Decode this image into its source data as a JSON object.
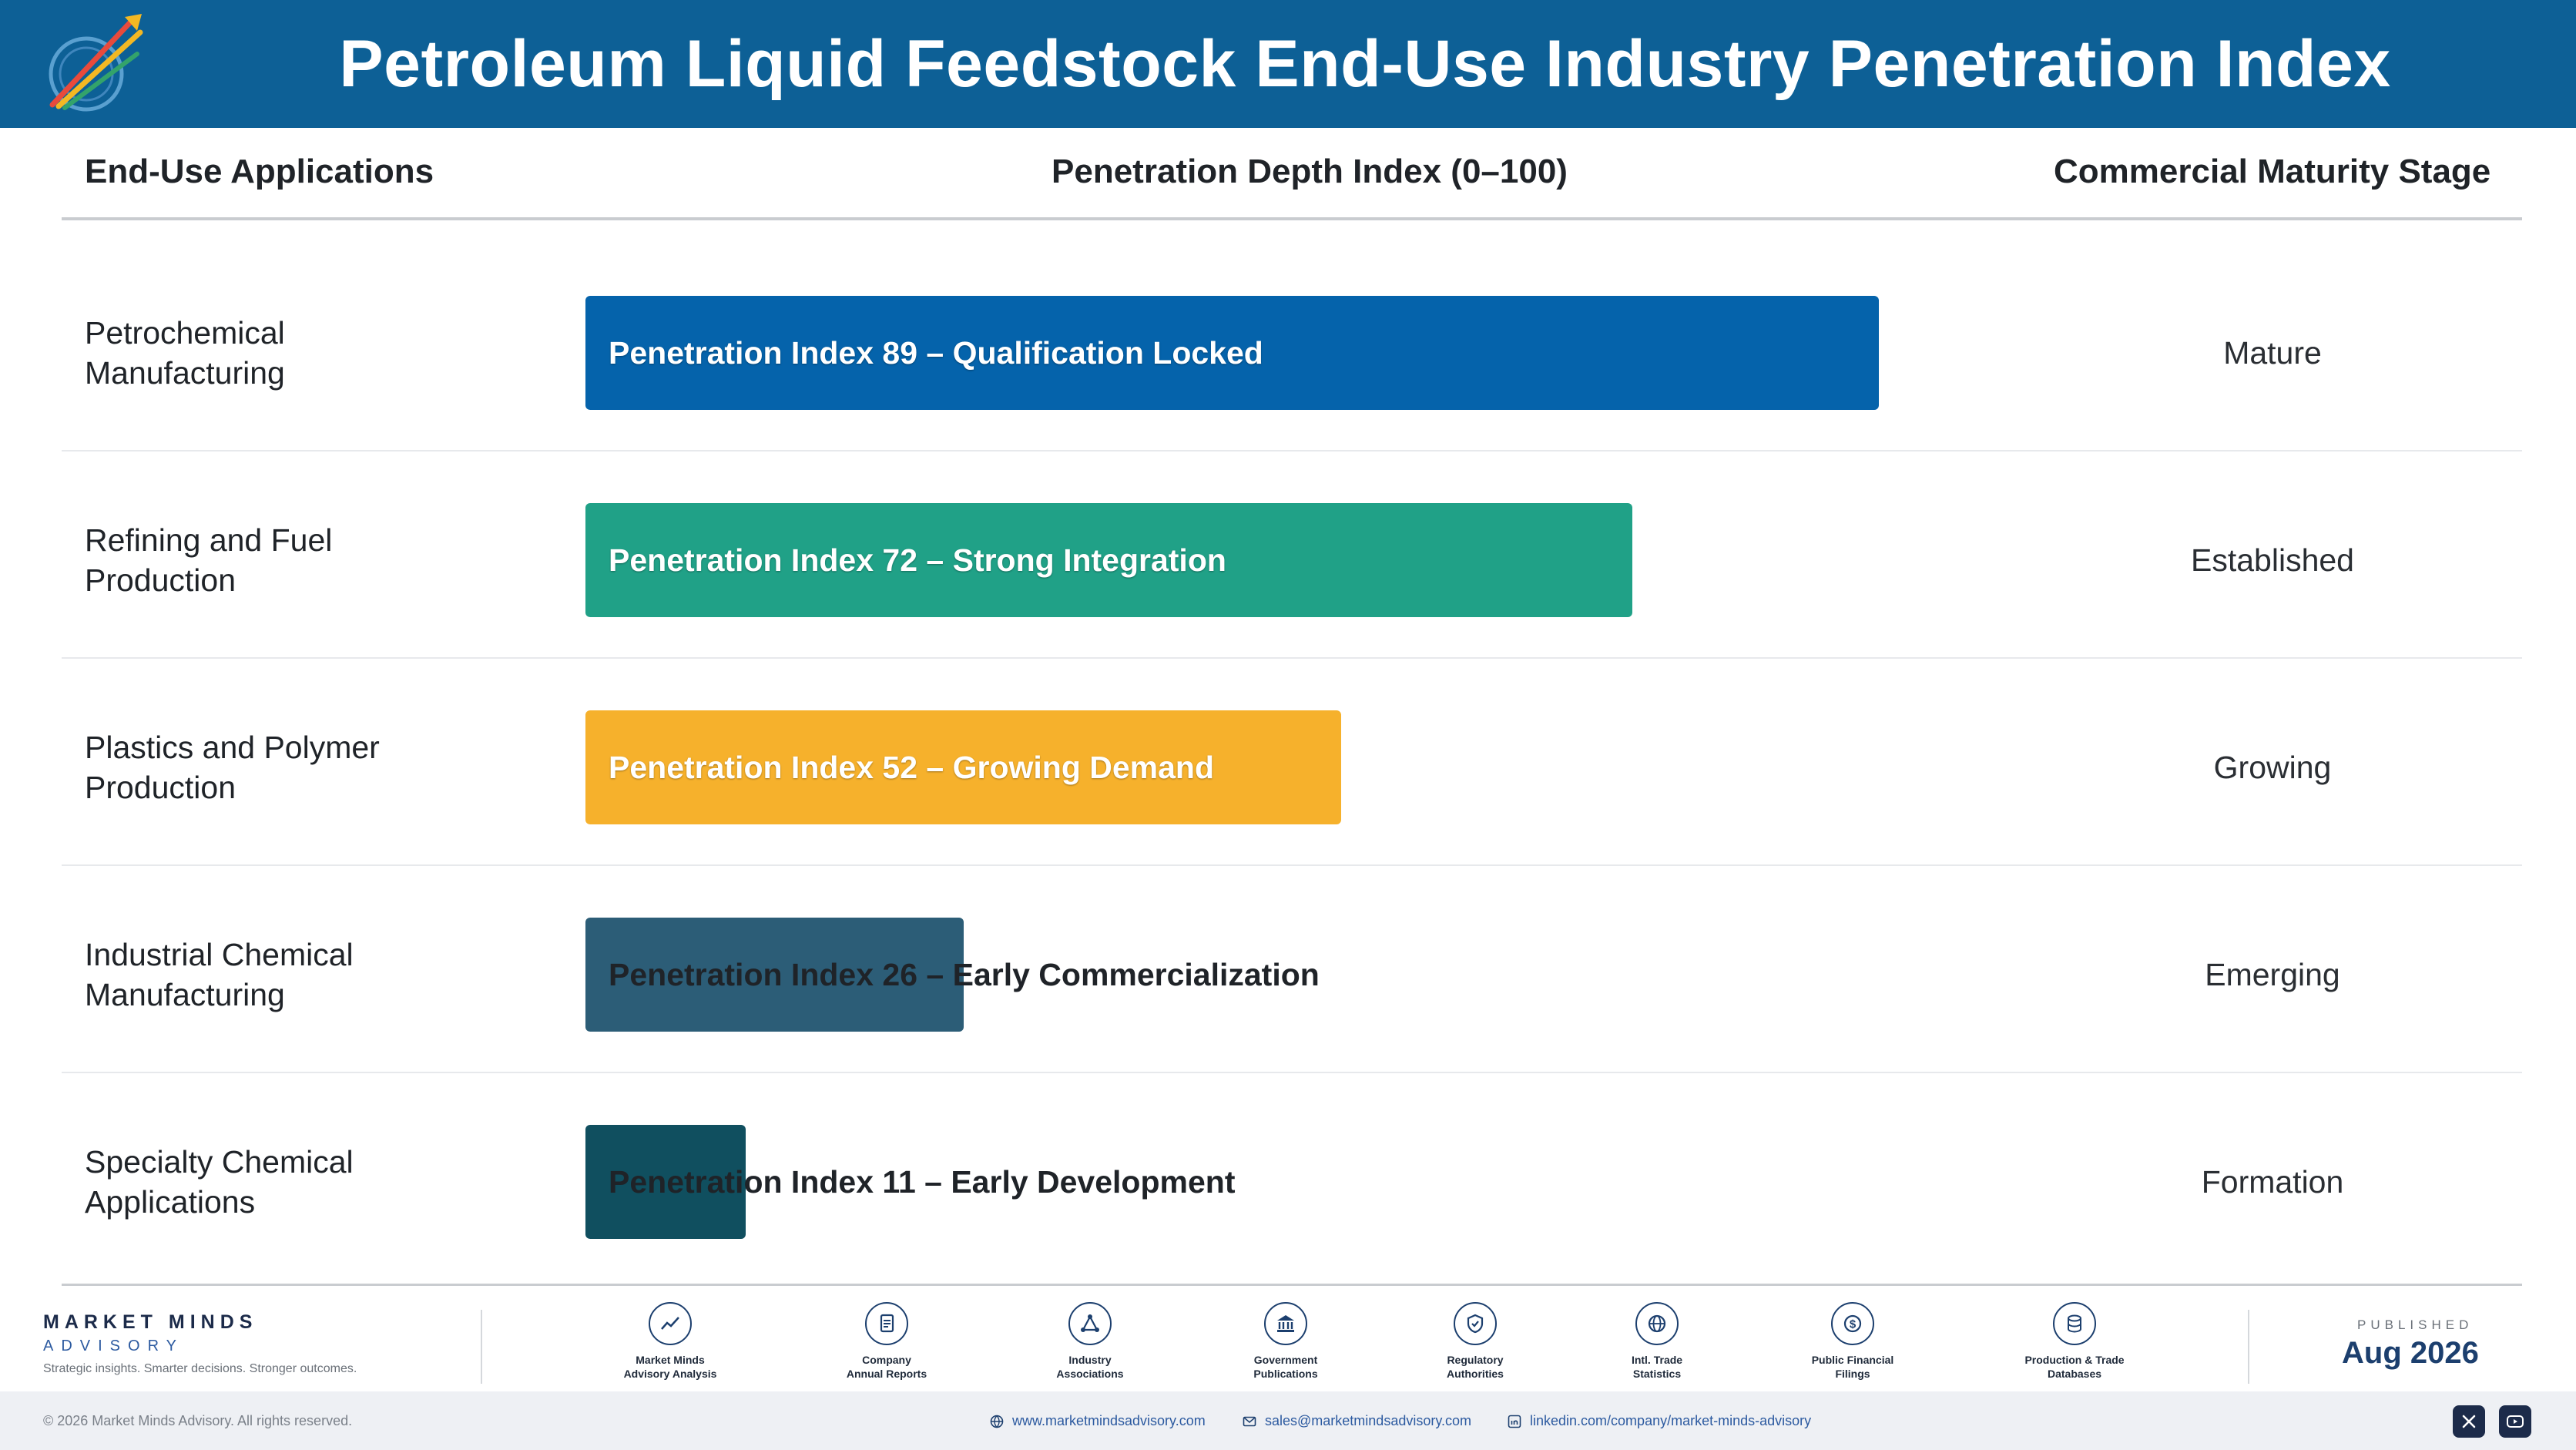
{
  "header": {
    "title": "Petroleum Liquid Feedstock End-Use Industry Penetration Index",
    "logo_icon": "market-minds-logo"
  },
  "columns": {
    "applications": "End-Use Applications",
    "index": "Penetration Depth Index (0–100)",
    "stage": "Commercial Maturity Stage"
  },
  "chart_data": {
    "type": "bar",
    "orientation": "horizontal",
    "xlim": [
      0,
      100
    ],
    "categories": [
      "Petrochemical Manufacturing",
      "Refining and Fuel Production",
      "Plastics and Polymer Production",
      "Industrial Chemical Manufacturing",
      "Specialty Chemical Applications"
    ],
    "values": [
      89,
      72,
      52,
      26,
      11
    ],
    "bar_labels": [
      "Penetration Index 89 – Qualification Locked",
      "Penetration Index 72 – Strong Integration",
      "Penetration Index 52 – Growing Demand",
      "Penetration Index 26 – Early Commercialization",
      "Penetration Index 11 – Early Development"
    ],
    "stages": [
      "Mature",
      "Established",
      "Growing",
      "Emerging",
      "Formation"
    ],
    "colors": [
      "#0563ab",
      "#20a187",
      "#f6b12c",
      "#2c5d77",
      "#104f5f"
    ]
  },
  "rows": [
    {
      "label_line1": "Petrochemical",
      "label_line2": "Manufacturing"
    },
    {
      "label_line1": "Refining and Fuel",
      "label_line2": "Production"
    },
    {
      "label_line1": "Plastics and Polymer",
      "label_line2": "Production"
    },
    {
      "label_line1": "Industrial Chemical",
      "label_line2": "Manufacturing"
    },
    {
      "label_line1": "Specialty Chemical",
      "label_line2": "Applications"
    }
  ],
  "footer": {
    "brand_name": "MARKET MINDS",
    "brand_sub": "ADVISORY",
    "brand_tagline": "Strategic insights. Smarter decisions. Stronger outcomes.",
    "sources": [
      {
        "line1": "Market Minds",
        "line2": "Advisory Analysis",
        "icon": "trend-chart-icon"
      },
      {
        "line1": "Company",
        "line2": "Annual Reports",
        "icon": "document-icon"
      },
      {
        "line1": "Industry",
        "line2": "Associations",
        "icon": "network-icon"
      },
      {
        "line1": "Government",
        "line2": "Publications",
        "icon": "government-building-icon"
      },
      {
        "line1": "Regulatory",
        "line2": "Authorities",
        "icon": "shield-check-icon"
      },
      {
        "line1": "Intl. Trade",
        "line2": "Statistics",
        "icon": "globe-icon"
      },
      {
        "line1": "Public Financial",
        "line2": "Filings",
        "icon": "dollar-coin-icon"
      },
      {
        "line1": "Production & Trade",
        "line2": "Databases",
        "icon": "database-icon"
      }
    ],
    "published_label": "PUBLISHED",
    "published_date": "Aug 2026",
    "copyright": "© 2026 Market Minds Advisory. All rights reserved.",
    "website": "www.marketmindsadvisory.com",
    "email": "sales@marketmindsadvisory.com",
    "linkedin": "linkedin.com/company/market-minds-advisory",
    "social_icons": [
      "x-icon",
      "youtube-icon"
    ]
  }
}
